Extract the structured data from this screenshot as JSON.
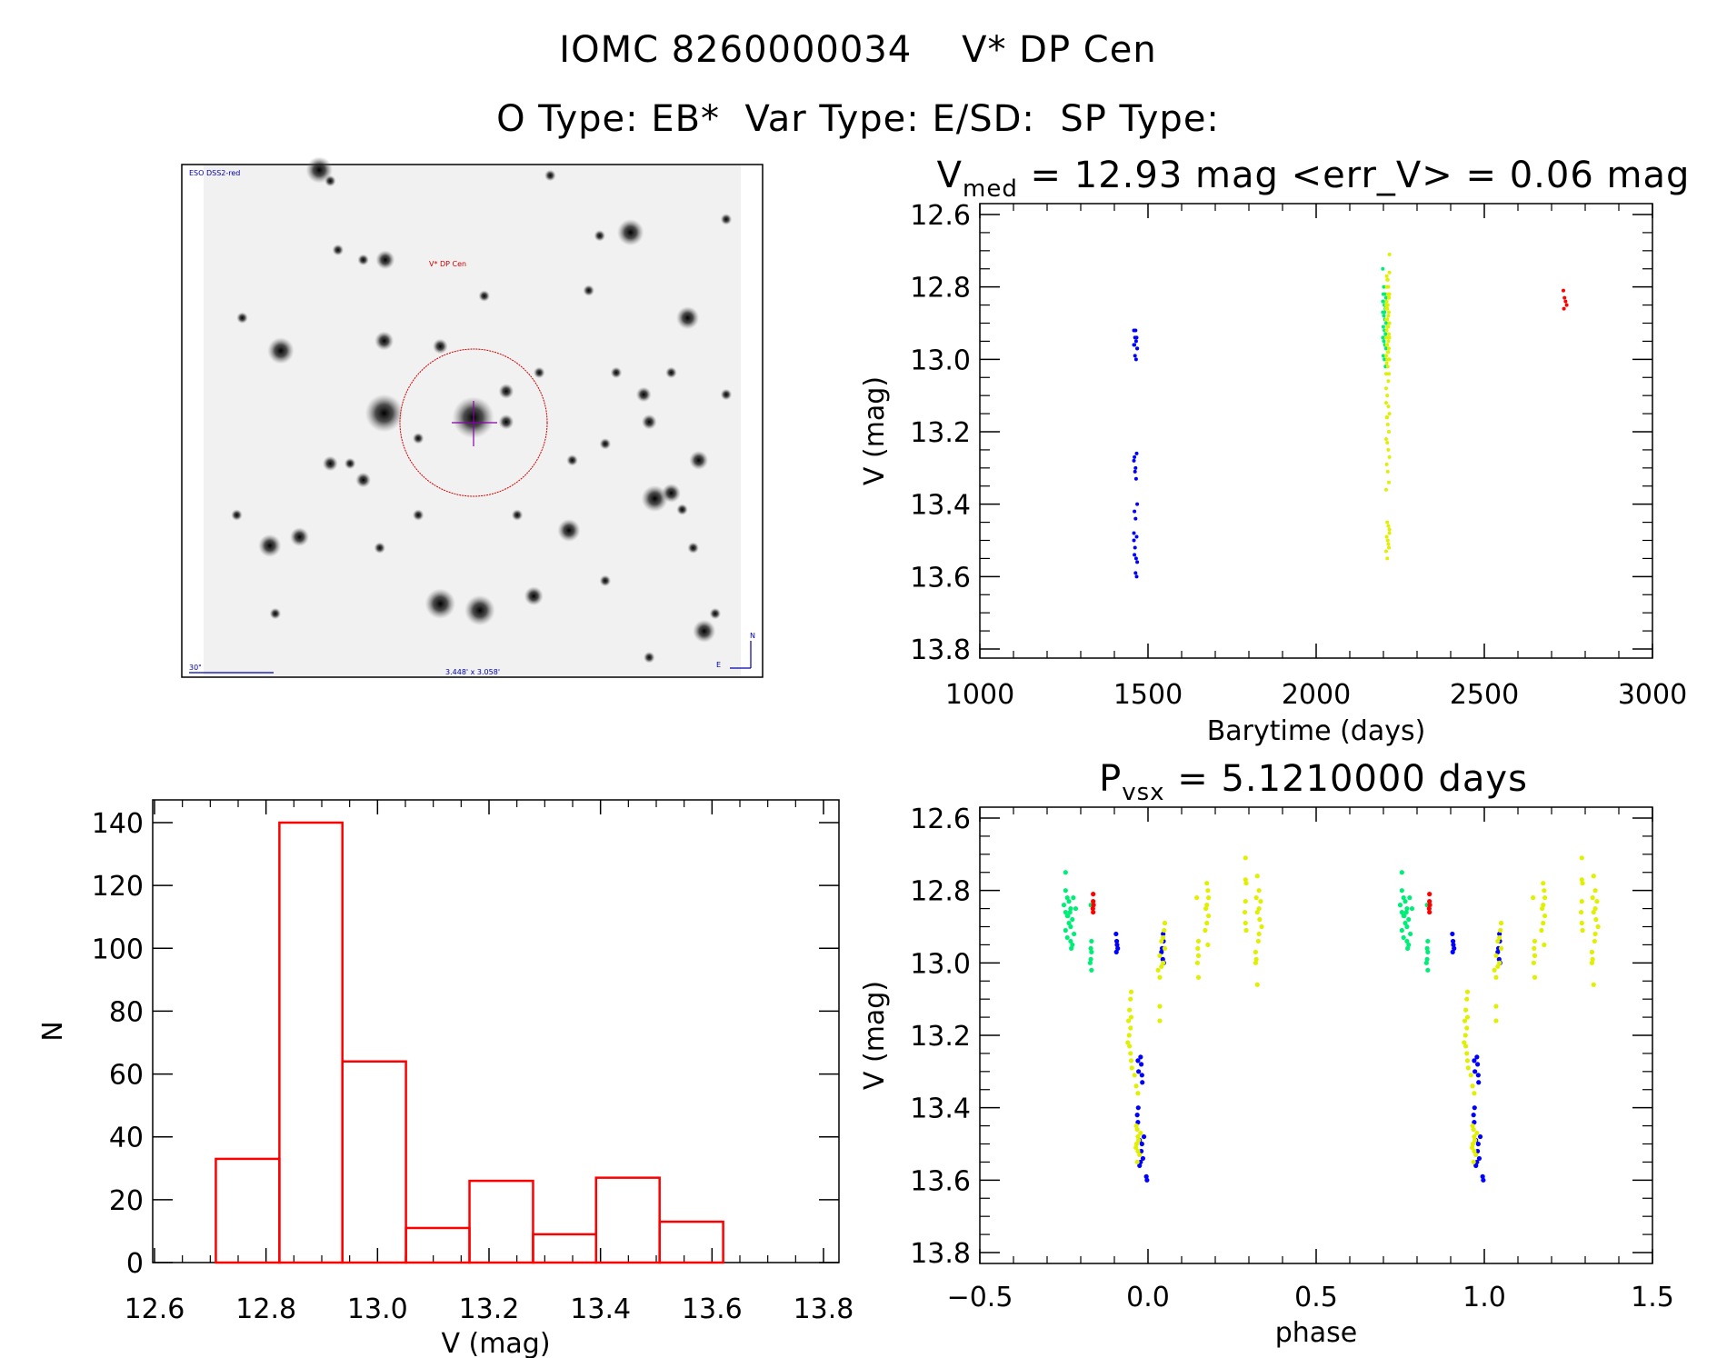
{
  "header": {
    "title_line1": "IOMC 8260000034    V* DP Cen",
    "title_line2": "O Type: EB*  Var Type: E/SD:  SP Type:"
  },
  "finder_image": {
    "survey_label": "ESO DSS2-red",
    "target_label": "V* DP Cen",
    "scale_label": "30\"",
    "field_label": "3.448' x 3.058'",
    "north_label": "N",
    "east_label": "E",
    "colors": {
      "labels": "#0000aa",
      "target": "#cc0000",
      "cross": "#8800aa"
    }
  },
  "chart_data": [
    {
      "id": "lightcurve",
      "type": "scatter",
      "title_main": "V",
      "title_sub": "med",
      "title_rest": " = 12.93 mag <err_V> = 0.06 mag",
      "xlabel": "Barytime (days)",
      "ylabel": "V (mag)",
      "xlim": [
        1000,
        3000
      ],
      "ylim": [
        12.6,
        13.8
      ],
      "y_inverted": true,
      "xticks": [
        "1000",
        "1500",
        "2000",
        "2500",
        "3000"
      ],
      "yticks": [
        "12.6",
        "12.8",
        "13.0",
        "13.2",
        "13.4",
        "13.6",
        "13.8"
      ],
      "note": "points share magnitudes with phased series; x = barytime"
    },
    {
      "id": "histogram",
      "type": "bar",
      "xlabel": "V (mag)",
      "ylabel": "N",
      "xlim": [
        12.6,
        13.8
      ],
      "ylim": [
        0,
        145
      ],
      "bin_edges": [
        12.71,
        12.824,
        12.937,
        13.051,
        13.165,
        13.279,
        13.392,
        13.506,
        13.62
      ],
      "values": [
        33,
        140,
        64,
        11,
        26,
        9,
        27,
        13
      ],
      "color": "#ff0000",
      "xticks": [
        "12.6",
        "12.8",
        "13.0",
        "13.2",
        "13.4",
        "13.6",
        "13.8"
      ],
      "yticks": [
        "0",
        "20",
        "40",
        "60",
        "80",
        "100",
        "120",
        "140"
      ]
    },
    {
      "id": "phased",
      "type": "scatter",
      "title_main": "P",
      "title_sub": "vsx",
      "title_rest": " = 5.1210000 days",
      "xlabel": "phase",
      "ylabel": "V (mag)",
      "xlim": [
        -0.5,
        1.5
      ],
      "ylim": [
        12.6,
        13.8
      ],
      "y_inverted": true,
      "repeat_offset": 1,
      "xticks": [
        "−0.5",
        "0.0",
        "0.5",
        "1.0",
        "1.5"
      ],
      "yticks": [
        "12.6",
        "12.8",
        "13.0",
        "13.2",
        "13.4",
        "13.6",
        "13.8"
      ]
    }
  ],
  "series": [
    {
      "name": "blue",
      "color": "#0000ff",
      "barytime": 1463,
      "points": [
        [
          -0.095,
          12.92
        ],
        [
          -0.093,
          12.94
        ],
        [
          -0.092,
          12.95
        ],
        [
          -0.094,
          12.97
        ],
        [
          -0.09,
          12.96
        ],
        [
          0.045,
          12.92
        ],
        [
          0.046,
          12.94
        ],
        [
          0.042,
          12.96
        ],
        [
          0.044,
          12.99
        ],
        [
          0.047,
          13.0
        ],
        [
          0.04,
          12.97
        ],
        [
          -0.03,
          13.27
        ],
        [
          -0.028,
          13.3
        ],
        [
          -0.022,
          13.26
        ],
        [
          -0.02,
          13.28
        ],
        [
          -0.018,
          13.31
        ],
        [
          -0.017,
          13.33
        ],
        [
          -0.029,
          13.4
        ],
        [
          -0.032,
          13.42
        ],
        [
          -0.03,
          13.44
        ],
        [
          -0.025,
          13.49
        ],
        [
          -0.018,
          13.5
        ],
        [
          -0.02,
          13.52
        ],
        [
          -0.022,
          13.55
        ],
        [
          -0.025,
          13.56
        ],
        [
          -0.015,
          13.54
        ],
        [
          -0.005,
          13.59
        ],
        [
          -0.003,
          13.6
        ],
        [
          -0.012,
          13.48
        ]
      ]
    },
    {
      "name": "green",
      "color": "#00ee77",
      "barytime": 2203,
      "points": [
        [
          -0.245,
          12.75
        ],
        [
          -0.245,
          12.8
        ],
        [
          -0.24,
          12.82
        ],
        [
          -0.235,
          12.83
        ],
        [
          -0.25,
          12.84
        ],
        [
          -0.23,
          12.85
        ],
        [
          -0.245,
          12.86
        ],
        [
          -0.24,
          12.87
        ],
        [
          -0.225,
          12.88
        ],
        [
          -0.235,
          12.89
        ],
        [
          -0.23,
          12.9
        ],
        [
          -0.245,
          12.91
        ],
        [
          -0.22,
          12.92
        ],
        [
          -0.24,
          12.93
        ],
        [
          -0.23,
          12.94
        ],
        [
          -0.225,
          12.95
        ],
        [
          -0.228,
          12.96
        ],
        [
          -0.215,
          12.85
        ],
        [
          -0.222,
          12.82
        ],
        [
          -0.238,
          12.87
        ],
        [
          -0.232,
          12.86
        ],
        [
          -0.17,
          12.84
        ],
        [
          -0.168,
          12.94
        ],
        [
          -0.17,
          12.96
        ],
        [
          -0.168,
          12.97
        ],
        [
          -0.17,
          12.99
        ],
        [
          -0.172,
          13.0
        ],
        [
          -0.168,
          13.02
        ]
      ]
    },
    {
      "name": "yellow",
      "color": "#e0f000",
      "barytime": 2213,
      "points": [
        [
          -0.05,
          13.08
        ],
        [
          -0.052,
          13.1
        ],
        [
          -0.055,
          13.13
        ],
        [
          -0.05,
          13.15
        ],
        [
          -0.058,
          13.16
        ],
        [
          -0.052,
          13.18
        ],
        [
          -0.056,
          13.2
        ],
        [
          -0.06,
          13.22
        ],
        [
          -0.055,
          13.23
        ],
        [
          -0.052,
          13.25
        ],
        [
          -0.05,
          13.27
        ],
        [
          -0.048,
          13.29
        ],
        [
          -0.04,
          13.31
        ],
        [
          -0.035,
          13.34
        ],
        [
          -0.03,
          13.36
        ],
        [
          -0.035,
          13.45
        ],
        [
          -0.032,
          13.46
        ],
        [
          -0.03,
          13.48
        ],
        [
          -0.028,
          13.49
        ],
        [
          -0.034,
          13.5
        ],
        [
          -0.03,
          13.52
        ],
        [
          -0.025,
          13.53
        ],
        [
          -0.032,
          13.55
        ],
        [
          -0.036,
          13.51
        ],
        [
          -0.022,
          13.47
        ],
        [
          0.05,
          12.89
        ],
        [
          0.048,
          12.91
        ],
        [
          0.045,
          12.93
        ],
        [
          0.04,
          12.94
        ],
        [
          0.05,
          12.96
        ],
        [
          0.035,
          12.98
        ],
        [
          0.045,
          13.0
        ],
        [
          0.04,
          13.01
        ],
        [
          0.03,
          13.02
        ],
        [
          0.035,
          13.04
        ],
        [
          0.035,
          13.12
        ],
        [
          0.035,
          13.16
        ],
        [
          0.145,
          12.82
        ],
        [
          0.15,
          12.94
        ],
        [
          0.148,
          12.96
        ],
        [
          0.15,
          12.98
        ],
        [
          0.147,
          13.0
        ],
        [
          0.15,
          13.04
        ],
        [
          0.175,
          12.78
        ],
        [
          0.178,
          12.8
        ],
        [
          0.18,
          12.82
        ],
        [
          0.175,
          12.84
        ],
        [
          0.172,
          12.85
        ],
        [
          0.18,
          12.87
        ],
        [
          0.175,
          12.89
        ],
        [
          0.17,
          12.91
        ],
        [
          0.178,
          12.95
        ],
        [
          0.29,
          12.71
        ],
        [
          0.29,
          12.77
        ],
        [
          0.292,
          12.78
        ],
        [
          0.29,
          12.83
        ],
        [
          0.288,
          12.86
        ],
        [
          0.29,
          12.89
        ],
        [
          0.292,
          12.91
        ],
        [
          0.325,
          12.76
        ],
        [
          0.33,
          12.8
        ],
        [
          0.322,
          12.82
        ],
        [
          0.335,
          12.83
        ],
        [
          0.33,
          12.85
        ],
        [
          0.325,
          12.86
        ],
        [
          0.332,
          12.88
        ],
        [
          0.338,
          12.9
        ],
        [
          0.33,
          12.92
        ],
        [
          0.328,
          12.94
        ],
        [
          0.32,
          12.97
        ],
        [
          0.322,
          12.99
        ],
        [
          0.32,
          13.0
        ],
        [
          0.325,
          13.06
        ]
      ]
    },
    {
      "name": "red",
      "color": "#ff0000",
      "barytime": 2740,
      "points": [
        [
          -0.163,
          12.81
        ],
        [
          -0.163,
          12.83
        ],
        [
          -0.162,
          12.84
        ],
        [
          -0.164,
          12.85
        ],
        [
          -0.163,
          12.86
        ]
      ]
    }
  ]
}
